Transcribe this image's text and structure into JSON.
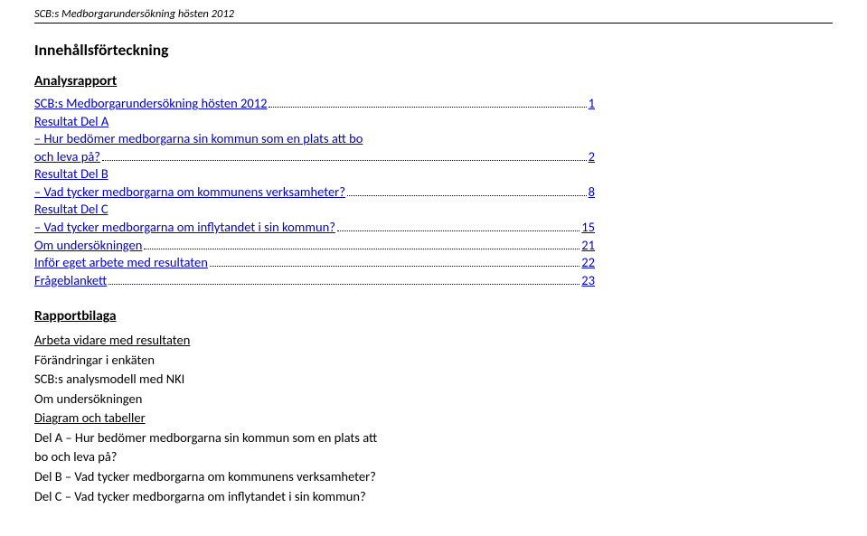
{
  "running_header": "SCB:s Medborgarundersökning hösten 2012",
  "title": "Innehållsförteckning",
  "section_a_heading": "Analysrapport",
  "toc": {
    "line0": {
      "text": "SCB:s Medborgarundersökning hösten 2012",
      "page": "1"
    },
    "sect_a_head": "Resultat Del A",
    "sect_a_desc_a": " – Hur bedömer medborgarna sin kommun som en plats att bo",
    "sect_a_desc_b": "och leva på?",
    "sect_a_page": "2",
    "sect_b_head": "Resultat Del B",
    "sect_b_desc": " – Vad tycker medborgarna om kommunens verksamheter?",
    "sect_b_page": "8",
    "sect_c_head": "Resultat Del C",
    "sect_c_desc": " – Vad tycker medborgarna om inflytandet i sin kommun?",
    "sect_c_page": "15",
    "line_om": {
      "text": "Om undersökningen",
      "page": "21"
    },
    "line_infor": {
      "text": "Inför eget arbete med resultaten",
      "page": "22"
    },
    "line_fb": {
      "text": "Frågeblankett",
      "page": "23"
    }
  },
  "bilaga": {
    "heading": "Rapportbilaga",
    "l1": "Arbeta vidare med resultaten",
    "l2": "Förändringar i enkäten",
    "l3": "SCB:s analysmodell med NKI",
    "l4": "Om undersökningen",
    "l5": "Diagram och tabeller",
    "l6": "Del A – Hur bedömer medborgarna sin kommun som en plats att",
    "l6b": "bo och leva på?",
    "l7": "Del B – Vad tycker medborgarna om kommunens verksamheter?",
    "l8": "Del C – Vad tycker medborgarna om inflytandet i sin kommun?"
  }
}
